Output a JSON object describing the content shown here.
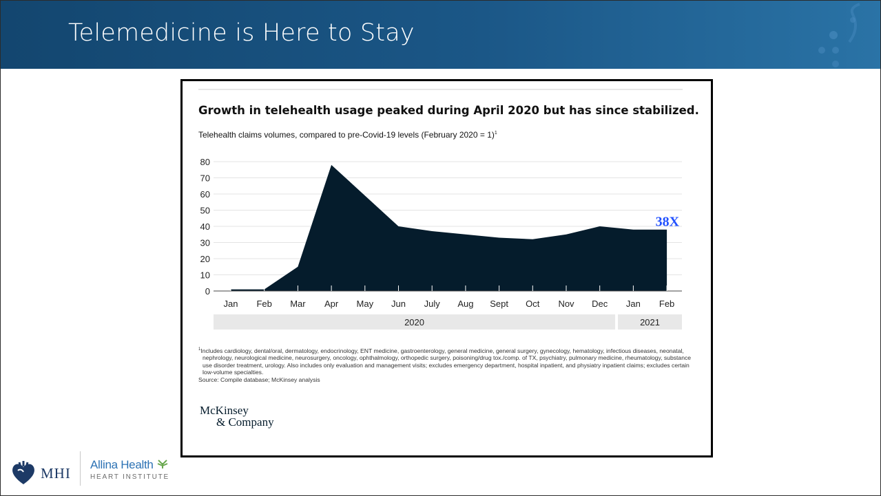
{
  "slide": {
    "title": "Telemedicine is Here to Stay",
    "accent_color": "#1b5787"
  },
  "chart_data": {
    "type": "area",
    "title": "Growth in telehealth usage peaked during April 2020 but has since stabilized.",
    "subtitle": "Telehealth claims volumes, compared to pre-Covid-19 levels (February 2020 = 1)",
    "subtitle_footnote_mark": "1",
    "categories": [
      "Jan",
      "Feb",
      "Mar",
      "Apr",
      "May",
      "Jun",
      "July",
      "Aug",
      "Sept",
      "Oct",
      "Nov",
      "Dec",
      "Jan",
      "Feb"
    ],
    "values": [
      1,
      1,
      15,
      78,
      59,
      40,
      37,
      35,
      33,
      32,
      35,
      40,
      38,
      38
    ],
    "yticks": [
      0,
      10,
      20,
      30,
      40,
      50,
      60,
      70,
      80
    ],
    "ylim": [
      0,
      80
    ],
    "year_bands": [
      {
        "label": "2020",
        "from": 0,
        "to": 11
      },
      {
        "label": "2021",
        "from": 12,
        "to": 13
      }
    ],
    "end_annotation": "38X",
    "fill_color": "#051c2c",
    "annotation_color": "#2251ff",
    "grid": true
  },
  "footnote": {
    "mark": "1",
    "text": "Includes cardiology, dental/oral, dermatology, endocrinology, ENT medicine, gastroenterology, general medicine, general surgery, gynecology, hematology, infectious diseases, neonatal, nephrology, neurological medicine, neurosurgery, oncology, ophthalmology, orthopedic surgery, poisoning/drug tox./comp. of TX, psychiatry, pulmonary medicine, rheumatology, substance use disorder treatment, urology. Also includes only evaluation and management visits; excludes emergency department, hospital inpatient, and physiatry inpatient claims; excludes certain low-volume specialties.",
    "source": "Source: Compile database; McKinsey analysis"
  },
  "logos": {
    "mckinsey_line1": "McKinsey",
    "mckinsey_line2": "& Company",
    "mhi": "MHI",
    "allina_name": "Allina Health",
    "allina_sub": "HEART INSTITUTE"
  }
}
